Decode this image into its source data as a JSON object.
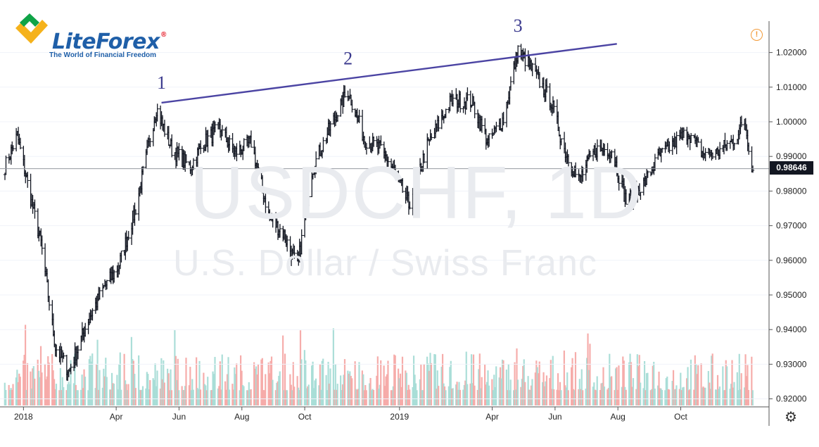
{
  "logo": {
    "name": "LiteForex",
    "registered": "®",
    "tagline": "The World of Financial Freedom"
  },
  "watermark": {
    "symbol": "USDCHF, 1D",
    "description": "U.S. Dollar / Swiss Franc"
  },
  "current_price": "0.98646",
  "icons": {
    "alert": "alert-circle-icon",
    "settings": "gear-icon"
  },
  "colors": {
    "up_volume": "#a6dcd6",
    "down_volume": "#f5a9a6",
    "trendline": "#4b44a3",
    "bars": "#131722"
  },
  "chart_data": {
    "type": "ohlc",
    "symbol": "USDCHF",
    "timeframe": "1D",
    "ylim": [
      0.918,
      1.028
    ],
    "yticks": [
      "1.02000",
      "1.01000",
      "1.00000",
      "0.99000",
      "0.98000",
      "0.97000",
      "0.96000",
      "0.95000",
      "0.94000",
      "0.93000",
      "0.92000"
    ],
    "xticks": [
      "2018",
      "Apr",
      "Jun",
      "Aug",
      "Oct",
      "2019",
      "Apr",
      "Jun",
      "Aug",
      "Oct"
    ],
    "anchor_closes": [
      {
        "date": "2017-12-14",
        "close": 0.987
      },
      {
        "date": "2017-12-26",
        "close": 0.996
      },
      {
        "date": "2018-01-08",
        "close": 0.978
      },
      {
        "date": "2018-01-18",
        "close": 0.965
      },
      {
        "date": "2018-02-01",
        "close": 0.935
      },
      {
        "date": "2018-02-14",
        "close": 0.928
      },
      {
        "date": "2018-02-22",
        "close": 0.934
      },
      {
        "date": "2018-03-05",
        "close": 0.943
      },
      {
        "date": "2018-03-20",
        "close": 0.952
      },
      {
        "date": "2018-04-03",
        "close": 0.958
      },
      {
        "date": "2018-04-20",
        "close": 0.975
      },
      {
        "date": "2018-05-10",
        "close": 1.004
      },
      {
        "date": "2018-05-25",
        "close": 0.992
      },
      {
        "date": "2018-06-12",
        "close": 0.987
      },
      {
        "date": "2018-06-25",
        "close": 0.994
      },
      {
        "date": "2018-07-10",
        "close": 0.998
      },
      {
        "date": "2018-07-25",
        "close": 0.991
      },
      {
        "date": "2018-08-10",
        "close": 0.994
      },
      {
        "date": "2018-08-28",
        "close": 0.972
      },
      {
        "date": "2018-09-10",
        "close": 0.968
      },
      {
        "date": "2018-09-24",
        "close": 0.958
      },
      {
        "date": "2018-10-08",
        "close": 0.986
      },
      {
        "date": "2018-10-25",
        "close": 0.998
      },
      {
        "date": "2018-11-12",
        "close": 1.009
      },
      {
        "date": "2018-11-28",
        "close": 0.995
      },
      {
        "date": "2018-12-14",
        "close": 0.992
      },
      {
        "date": "2018-12-28",
        "close": 0.985
      },
      {
        "date": "2019-01-10",
        "close": 0.976
      },
      {
        "date": "2019-01-28",
        "close": 0.993
      },
      {
        "date": "2019-02-20",
        "close": 1.006
      },
      {
        "date": "2019-03-12",
        "close": 1.006
      },
      {
        "date": "2019-03-28",
        "close": 0.994
      },
      {
        "date": "2019-04-12",
        "close": 1.001
      },
      {
        "date": "2019-04-26",
        "close": 1.021
      },
      {
        "date": "2019-05-10",
        "close": 1.015
      },
      {
        "date": "2019-05-28",
        "close": 1.006
      },
      {
        "date": "2019-06-10",
        "close": 0.992
      },
      {
        "date": "2019-06-24",
        "close": 0.983
      },
      {
        "date": "2019-07-10",
        "close": 0.992
      },
      {
        "date": "2019-07-26",
        "close": 0.992
      },
      {
        "date": "2019-08-09",
        "close": 0.977
      },
      {
        "date": "2019-08-26",
        "close": 0.982
      },
      {
        "date": "2019-09-10",
        "close": 0.99
      },
      {
        "date": "2019-09-25",
        "close": 0.994
      },
      {
        "date": "2019-10-08",
        "close": 0.997
      },
      {
        "date": "2019-10-22",
        "close": 0.991
      },
      {
        "date": "2019-11-05",
        "close": 0.991
      },
      {
        "date": "2019-11-22",
        "close": 0.995
      },
      {
        "date": "2019-12-02",
        "close": 1.0
      },
      {
        "date": "2019-12-10",
        "close": 0.986
      }
    ],
    "trendline": {
      "start": {
        "date": "2018-05-15",
        "price": 1.0055
      },
      "end": {
        "date": "2019-07-31",
        "price": 1.0225
      }
    },
    "wave_points": [
      {
        "label": "1",
        "date": "2018-05-15",
        "price": 1.0055
      },
      {
        "label": "2",
        "date": "2018-11-12",
        "price": 1.0125
      },
      {
        "label": "3",
        "date": "2019-04-26",
        "price": 1.022
      }
    ],
    "volume_range": [
      0.921,
      0.943
    ]
  }
}
